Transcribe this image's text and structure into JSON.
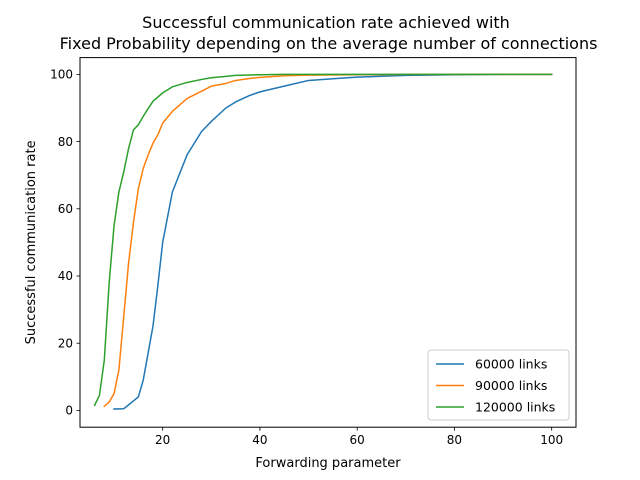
{
  "chart_data": {
    "type": "line",
    "title_lines": [
      "Successful communication rate achieved with",
      " Fixed Probability depending on the average number of connections"
    ],
    "xlabel": "Forwarding parameter",
    "ylabel": "Successful communication rate",
    "xlim": [
      3,
      105
    ],
    "ylim": [
      -5,
      105
    ],
    "xticks": [
      20,
      40,
      60,
      80,
      100
    ],
    "yticks": [
      0,
      20,
      40,
      60,
      80,
      100
    ],
    "grid": false,
    "legend_position": "lower-right",
    "series": [
      {
        "name": "60000 links",
        "color": "#1f77b4",
        "x": [
          10,
          12,
          15,
          16,
          17,
          18,
          19,
          20,
          22,
          25,
          28,
          30,
          33,
          35,
          38,
          40,
          45,
          50,
          55,
          60,
          70,
          80,
          90,
          100
        ],
        "y": [
          0.4,
          0.5,
          4,
          9,
          17,
          25,
          37,
          50,
          65,
          76,
          83,
          86,
          90,
          91.8,
          93.8,
          94.8,
          96.5,
          98.2,
          98.7,
          99.2,
          99.7,
          99.9,
          100,
          100
        ]
      },
      {
        "name": "90000 links",
        "color": "#ff7f0e",
        "x": [
          8,
          9,
          10,
          11,
          12,
          13,
          14,
          15,
          16,
          17,
          18,
          19,
          20,
          22,
          25,
          28,
          30,
          33,
          35,
          38,
          40,
          45,
          50,
          60,
          70,
          80,
          90,
          100
        ],
        "y": [
          1.2,
          2.5,
          5,
          12,
          28,
          44,
          56,
          66,
          72,
          76,
          79.5,
          82,
          85.5,
          89,
          92.8,
          95,
          96.5,
          97.3,
          98.2,
          98.8,
          99.1,
          99.6,
          99.8,
          99.9,
          100,
          100,
          100,
          100
        ]
      },
      {
        "name": "120000 links",
        "color": "#2ca02c",
        "x": [
          6,
          7,
          8,
          9,
          10,
          11,
          12,
          13,
          14,
          15,
          16,
          17,
          18,
          20,
          22,
          25,
          28,
          30,
          33,
          35,
          40,
          45,
          50,
          60,
          70,
          80,
          90,
          100
        ],
        "y": [
          1.5,
          4.5,
          15,
          38,
          55,
          65,
          71,
          78,
          83.5,
          85,
          87.5,
          89.8,
          92,
          94.5,
          96.3,
          97.6,
          98.5,
          99,
          99.4,
          99.7,
          99.9,
          100,
          100,
          100,
          100,
          100,
          100,
          100
        ]
      }
    ]
  }
}
